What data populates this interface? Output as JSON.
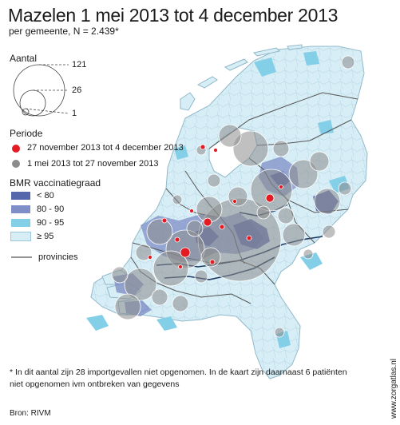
{
  "title": "Mazelen 1 mei 2013 tot 4 december 2013",
  "subtitle": "per gemeente, N = 2.439*",
  "legend": {
    "size": {
      "heading": "Aantal",
      "values": [
        "121",
        "26",
        "1"
      ]
    },
    "period": {
      "heading": "Periode",
      "items": [
        {
          "label": "27 november 2013 tot 4 december 2013",
          "color": "#e31b23"
        },
        {
          "label": "1 mei 2013 tot 27 november 2013",
          "color": "#8c8c8c"
        }
      ]
    },
    "vaccination": {
      "heading": "BMR vaccinatiegraad",
      "items": [
        {
          "label": "< 80",
          "color": "#5566aa"
        },
        {
          "label": "80 - 90",
          "color": "#7f8ec6"
        },
        {
          "label": "90 - 95",
          "color": "#84cfe8"
        },
        {
          "label": "≥ 95",
          "color": "#d8eef6"
        }
      ]
    },
    "provinces": {
      "label": "provincies",
      "color": "#555555"
    }
  },
  "footnote": "* In dit aantal zijn 28 importgevallen niet opgenomen. In de kaart zijn daarnaast 6 patiënten niet opgenomen ivm ontbreken van gegevens",
  "source": "Bron: RIVM",
  "credit": "www.zorgatlas.nl"
}
